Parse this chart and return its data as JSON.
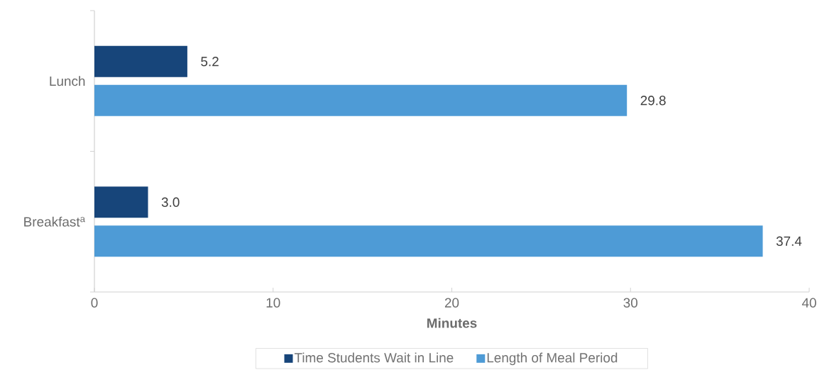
{
  "chart_data": {
    "type": "bar",
    "orientation": "horizontal",
    "categories": [
      "Lunch",
      "Breakfast$^{a}$"
    ],
    "xlabel": "Minutes",
    "series": [
      {
        "name": "Time Students Wait in Line",
        "color": "#17457a",
        "values": [
          5.2,
          3.0
        ],
        "value_labels": [
          "5.2",
          "3.0"
        ]
      },
      {
        "name": "Length of Meal Period",
        "color": "#4e9bd6",
        "values": [
          29.8,
          37.4
        ],
        "value_labels": [
          "29.8",
          "37.4"
        ]
      }
    ],
    "xlim": [
      0,
      40
    ],
    "xticks": [
      0,
      10,
      20,
      30,
      40
    ],
    "legend": "bottom",
    "grid": false
  }
}
